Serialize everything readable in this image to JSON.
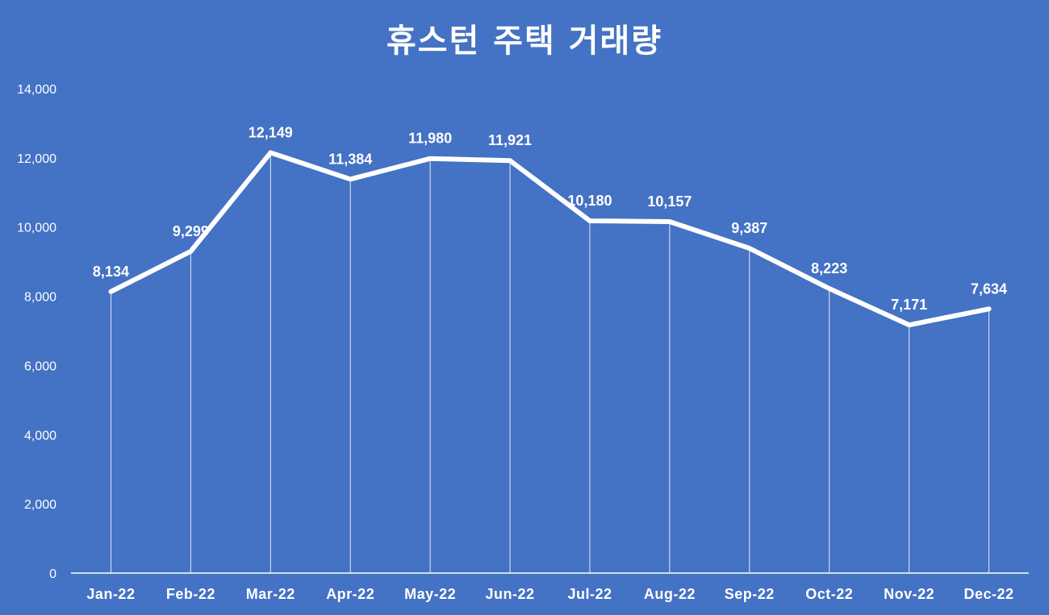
{
  "chart_data": {
    "type": "line",
    "title": "휴스턴 주택 거래량",
    "categories": [
      "Jan-22",
      "Feb-22",
      "Mar-22",
      "Apr-22",
      "May-22",
      "Jun-22",
      "Jul-22",
      "Aug-22",
      "Sep-22",
      "Oct-22",
      "Nov-22",
      "Dec-22"
    ],
    "series": [
      {
        "values": [
          8134,
          9299,
          12149,
          11384,
          11980,
          11921,
          10180,
          10157,
          9387,
          8223,
          7171,
          7634
        ],
        "labels": [
          "8,134",
          "9,299",
          "12,149",
          "11,384",
          "11,980",
          "11,921",
          "10,180",
          "10,157",
          "9,387",
          "8,223",
          "7,171",
          "7,634"
        ]
      }
    ],
    "ylim": [
      0,
      14000
    ],
    "yticks": [
      0,
      2000,
      4000,
      6000,
      8000,
      10000,
      12000,
      14000
    ],
    "ytick_labels": [
      "0",
      "2,000",
      "4,000",
      "6,000",
      "8,000",
      "10,000",
      "12,000",
      "14,000"
    ],
    "grid": false,
    "drop_lines": true,
    "legend": "none",
    "colors": {
      "background": "#4472c4",
      "line": "#ffffff",
      "text": "#ffffff"
    }
  }
}
